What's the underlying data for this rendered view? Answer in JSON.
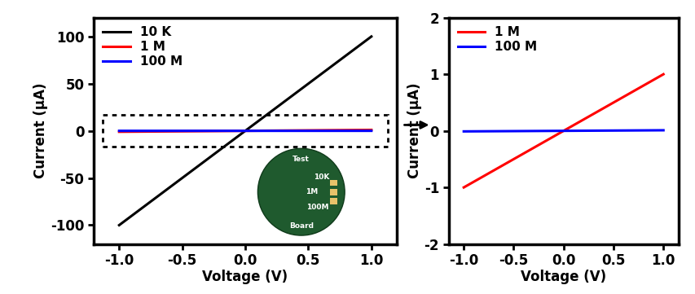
{
  "chart_data": [
    {
      "type": "line",
      "xlabel": "Voltage (V)",
      "ylabel": "Current (μA)",
      "x": [
        -1.0,
        1.0
      ],
      "series": [
        {
          "name": "10 K",
          "color": "#000000",
          "values": [
            -100,
            100
          ]
        },
        {
          "name": "1 M",
          "color": "#ff0000",
          "values": [
            -1,
            1
          ]
        },
        {
          "name": "100 M",
          "color": "#0000ff",
          "values": [
            -0.01,
            0.01
          ]
        }
      ],
      "xlim": [
        -1.2,
        1.2
      ],
      "ylim": [
        -120,
        120
      ],
      "xticks": [
        {
          "value": -1.0,
          "label": "-1.0"
        },
        {
          "value": -0.5,
          "label": "-0.5"
        },
        {
          "value": 0.0,
          "label": "0.0"
        },
        {
          "value": 0.5,
          "label": "0.5"
        },
        {
          "value": 1.0,
          "label": "1.0"
        }
      ],
      "yticks": [
        {
          "value": -100,
          "label": "-100"
        },
        {
          "value": -50,
          "label": "-50"
        },
        0,
        50,
        100
      ],
      "legend": "upper left",
      "annotations": [
        "Test",
        "10K",
        "1M",
        "100M",
        "Board"
      ]
    },
    {
      "type": "line",
      "xlabel": "Voltage (V)",
      "ylabel": "Current (μA)",
      "x": [
        -1.0,
        1.0
      ],
      "series": [
        {
          "name": "1 M",
          "color": "#ff0000",
          "values": [
            -1,
            1
          ]
        },
        {
          "name": "100 M",
          "color": "#0000ff",
          "values": [
            -0.01,
            0.01
          ]
        }
      ],
      "xlim": [
        -1.15,
        1.15
      ],
      "ylim": [
        -2,
        2
      ],
      "xticks": [
        {
          "value": -1.0,
          "label": "-1.0"
        },
        {
          "value": -0.5,
          "label": "-0.5"
        },
        {
          "value": 0.0,
          "label": "0.0"
        },
        {
          "value": 0.5,
          "label": "0.5"
        },
        {
          "value": 1.0,
          "label": "1.0"
        }
      ],
      "yticks": [
        {
          "value": -2,
          "label": "-2"
        },
        {
          "value": -1,
          "label": "-1"
        },
        0,
        1,
        2
      ],
      "legend": "upper left"
    }
  ]
}
